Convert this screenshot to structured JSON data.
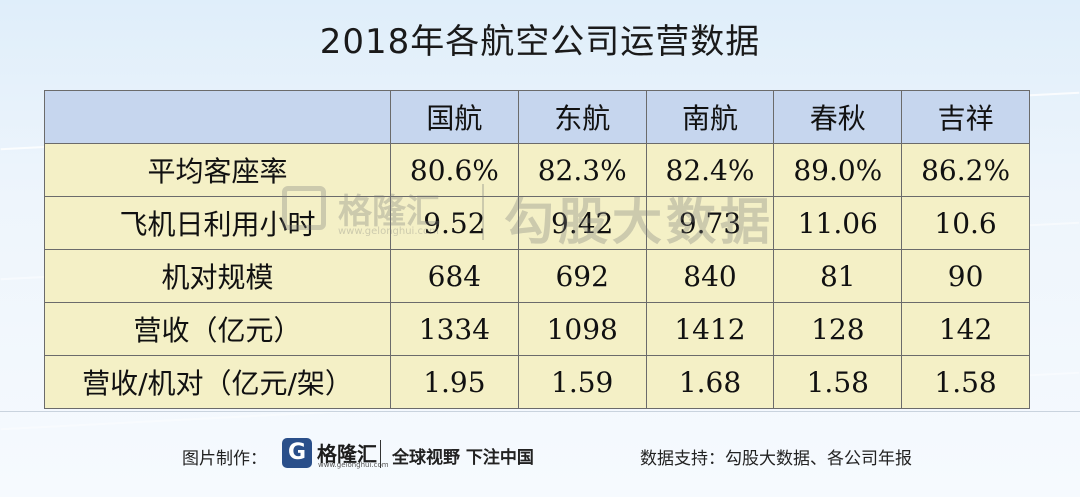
{
  "title": "2018年各航空公司运营数据",
  "chart_data": {
    "type": "table",
    "title": "2018年各航空公司运营数据",
    "columns": [
      "国航",
      "东航",
      "南航",
      "春秋",
      "吉祥"
    ],
    "rows": [
      {
        "label": "平均客座率",
        "values": [
          "80.6%",
          "82.3%",
          "82.4%",
          "89.0%",
          "86.2%"
        ]
      },
      {
        "label": "飞机日利用小时",
        "values": [
          "9.52",
          "9.42",
          "9.73",
          "11.06",
          "10.6"
        ]
      },
      {
        "label": "机对规模",
        "values": [
          "684",
          "692",
          "840",
          "81",
          "90"
        ]
      },
      {
        "label": "营收（亿元）",
        "values": [
          "1334",
          "1098",
          "1412",
          "128",
          "142"
        ]
      },
      {
        "label": "营收/机对（亿元/架）",
        "values": [
          "1.95",
          "1.59",
          "1.68",
          "1.58",
          "1.58"
        ]
      }
    ]
  },
  "watermark": {
    "brand": "格隆汇",
    "url": "www.gelonghui.com",
    "text": "勾股大数据"
  },
  "footer": {
    "credit_label": "图片制作：",
    "logo_glyph": "G",
    "brand": "格隆汇",
    "url": "www.gelonghui.com",
    "slogan": "全球视野 下注中国",
    "source": "数据支持：勾股大数据、各公司年报"
  },
  "colors": {
    "header_bg": "#c6d6ee",
    "body_bg": "#f4f0c6",
    "border": "#6b6b6b"
  }
}
